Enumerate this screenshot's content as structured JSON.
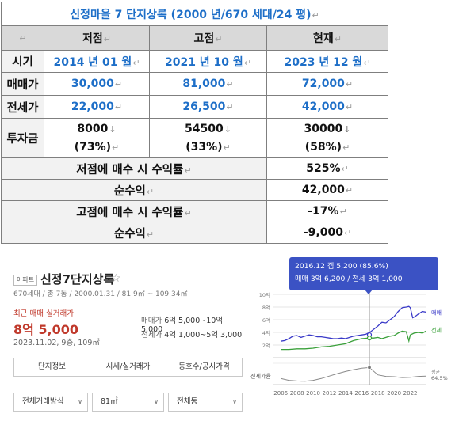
{
  "table": {
    "title": "신정마을 7 단지상록 (2000 년/670 세대/24 평)",
    "header": {
      "blank": "",
      "cols": [
        "저점",
        "고점",
        "현재"
      ]
    },
    "rows": [
      {
        "label": "시기",
        "values": [
          "2014 년 01 월",
          "2021 년 10 월",
          "2023 년 12 월"
        ]
      },
      {
        "label": "매매가",
        "values": [
          "30,000",
          "81,000",
          "72,000"
        ]
      },
      {
        "label": "전세가",
        "values": [
          "22,000",
          "26,500",
          "42,000"
        ]
      },
      {
        "label": "투자금",
        "values": [
          "8000",
          "54500",
          "30000"
        ],
        "pct": [
          "(73%)",
          "(33%)",
          "(58%)"
        ]
      }
    ],
    "summary": [
      {
        "label": "저점에 매수 시 수익률",
        "value": "525%"
      },
      {
        "label": "순수익",
        "value": "42,000"
      },
      {
        "label": "고점에 매수 시 수익률",
        "value": "-17%"
      },
      {
        "label": "순수익",
        "value": "-9,000"
      }
    ],
    "mark": "↵",
    "arrow": "↓"
  },
  "panel": {
    "tag": "아파트",
    "name": "신정7단지상록",
    "meta": "670세대 / 총 7동 / 2000.01.31 / 81.9㎡ ~ 109.34㎡",
    "recent_label": "최근 매매 실거래가",
    "recent_price": "8억 5,000",
    "recent_date": "2023.11.02, 9층, 109㎡",
    "sale_key": "매매가",
    "sale_range": "6억 5,000~10억 5,000",
    "jeonse_key": "전세가",
    "jeonse_range": "4억 1,000~5억 3,000",
    "tabs": [
      "단지정보",
      "시세/실거래가",
      "동호수/공시가격"
    ],
    "filters": [
      "전체거래방식",
      "81㎡",
      "전체동"
    ]
  },
  "chart_data": {
    "type": "line",
    "tooltip_line1": "2016.12  갭 5,200 (85.6%)",
    "tooltip_line2": "매매 3억 6,200 / 전세 3억 1,000",
    "x_ticks": [
      "2006",
      "2008",
      "2010",
      "2012",
      "2014",
      "2016",
      "2018",
      "2020",
      "2022"
    ],
    "y_ticks": [
      "10억",
      "8억",
      "6억",
      "4억",
      "2억"
    ],
    "xlim": [
      2005,
      2024
    ],
    "ylim": [
      0,
      10
    ],
    "ratio_label": "전세가율",
    "avg_label": "평균",
    "avg_value": "64.5%",
    "cursor_x": 2016.95,
    "series": [
      {
        "name": "매매",
        "color": "#3a3ac8",
        "x": [
          2006,
          2006.5,
          2007,
          2007.5,
          2008,
          2008.5,
          2009,
          2009.5,
          2010,
          2010.5,
          2011,
          2011.5,
          2012,
          2012.5,
          2013,
          2013.5,
          2014,
          2014.5,
          2015,
          2015.5,
          2016,
          2016.5,
          2017,
          2017.5,
          2018,
          2018.5,
          2019,
          2019.5,
          2020,
          2020.5,
          2021,
          2021.5,
          2021.83,
          2022,
          2022.3,
          2022.6,
          2023,
          2023.5,
          2023.92
        ],
        "y": [
          2.6,
          2.7,
          3.0,
          3.4,
          3.5,
          3.2,
          3.4,
          3.6,
          3.5,
          3.3,
          3.3,
          3.2,
          3.1,
          3.0,
          3.0,
          3.1,
          3.0,
          3.2,
          3.4,
          3.5,
          3.6,
          3.7,
          4.0,
          4.5,
          5.0,
          5.6,
          5.5,
          6.0,
          6.5,
          7.3,
          7.9,
          8.0,
          8.1,
          7.9,
          6.3,
          6.5,
          6.9,
          7.3,
          7.2
        ]
      },
      {
        "name": "전세",
        "color": "#3aa03a",
        "x": [
          2006,
          2007,
          2008,
          2009,
          2010,
          2011,
          2012,
          2013,
          2014,
          2015,
          2016,
          2016.95,
          2017.5,
          2018,
          2018.5,
          2019,
          2019.5,
          2020,
          2020.5,
          2021,
          2021.5,
          2021.83,
          2022,
          2022.5,
          2023,
          2023.5,
          2023.92
        ],
        "y": [
          1.3,
          1.3,
          1.4,
          1.4,
          1.5,
          1.7,
          1.8,
          2.0,
          2.2,
          2.7,
          3.0,
          3.1,
          3.1,
          3.2,
          3.0,
          3.2,
          3.4,
          3.5,
          3.9,
          4.2,
          4.1,
          2.65,
          3.6,
          3.9,
          4.0,
          3.9,
          4.2
        ]
      },
      {
        "name": "전세가율",
        "color": "#8a8a8a",
        "x": [
          2006,
          2007,
          2008,
          2009,
          2010,
          2011,
          2012,
          2013,
          2014,
          2015,
          2016,
          2016.95,
          2018,
          2019,
          2020,
          2021,
          2022,
          2023,
          2023.92
        ],
        "y": [
          50,
          44,
          42,
          41,
          44,
          50,
          58,
          66,
          73,
          79,
          84,
          86,
          62,
          57,
          56,
          53,
          54,
          57,
          58
        ]
      }
    ]
  }
}
